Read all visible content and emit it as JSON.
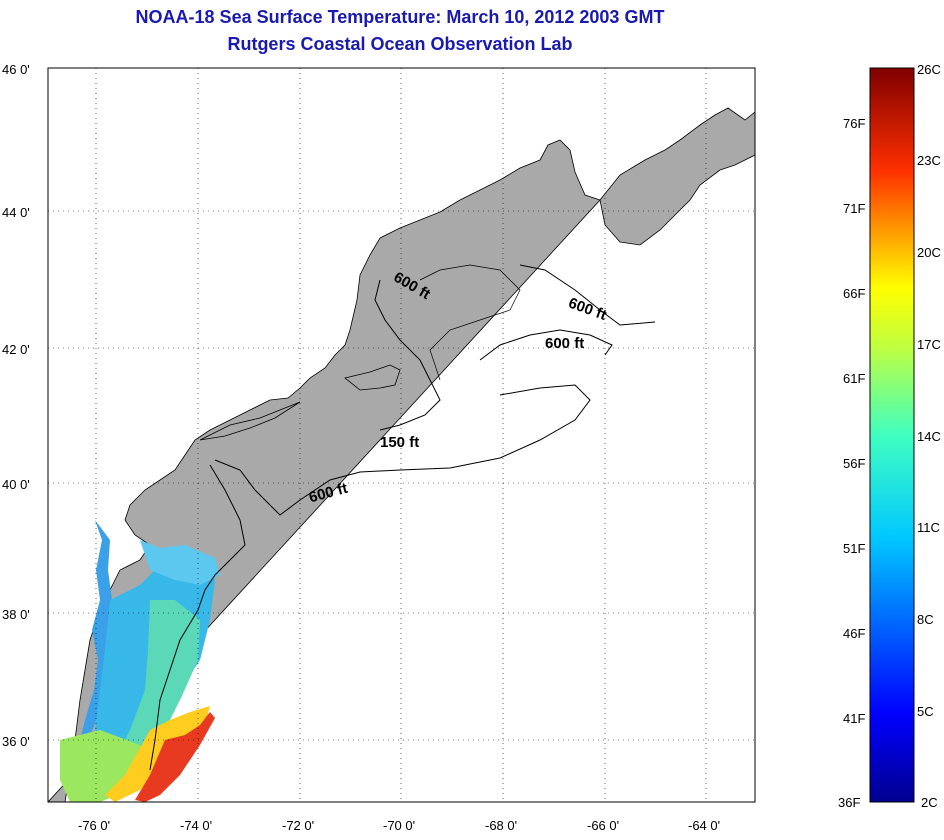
{
  "title": "NOAA-18 Sea Surface Temperature:  March 10, 2012 2003 GMT",
  "subtitle": "Rutgers Coastal Ocean Observation Lab",
  "lat_ticks": [
    "46 0'",
    "44 0'",
    "42 0'",
    "40 0'",
    "38 0'",
    "36 0'"
  ],
  "lon_ticks": [
    "-76 0'",
    "-74 0'",
    "-72 0'",
    "-70 0'",
    "-68 0'",
    "-66 0'",
    "-64 0'"
  ],
  "contour_labels": [
    "600 ft",
    "600 ft",
    "600 ft",
    "150 ft",
    "600 ft"
  ],
  "colorbar": {
    "fahrenheit": [
      "76F",
      "71F",
      "66F",
      "61F",
      "56F",
      "51F",
      "46F",
      "41F",
      "36F"
    ],
    "celsius": [
      "26C",
      "23C",
      "20C",
      "17C",
      "14C",
      "11C",
      "8C",
      "5C",
      "2C"
    ]
  },
  "colors": {
    "land": "#a9a9a9",
    "title": "#1a1ab0"
  }
}
